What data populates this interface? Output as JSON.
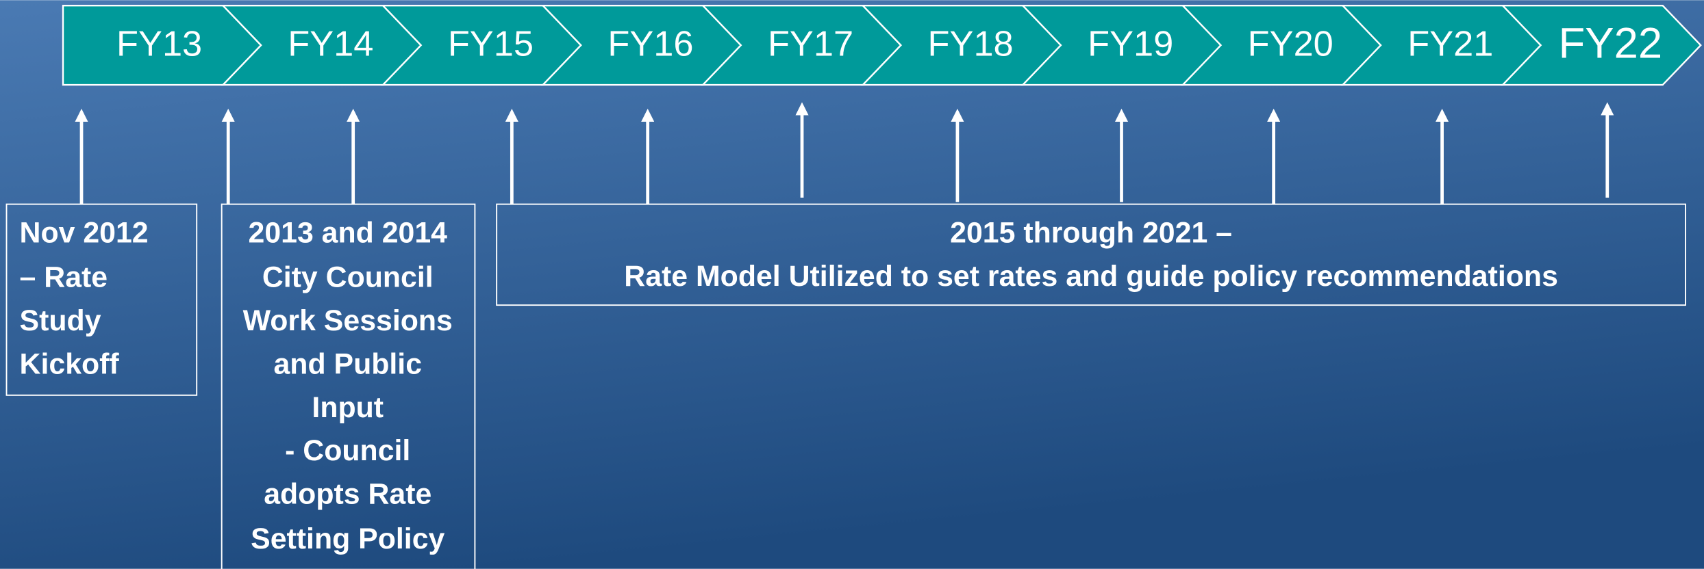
{
  "timeline": {
    "years": [
      "FY13",
      "FY14",
      "FY15",
      "FY16",
      "FY17",
      "FY18",
      "FY19",
      "FY20",
      "FY21",
      "FY22"
    ],
    "boxes": [
      {
        "lines": [
          "Nov 2012",
          "– Rate",
          "Study",
          "Kickoff"
        ]
      },
      {
        "lines": [
          "2013 and 2014",
          "City Council",
          "Work Sessions",
          "and Public",
          "Input",
          "- Council",
          "adopts Rate",
          "Setting Policy"
        ]
      },
      {
        "lines": [
          "2015 through 2021 –",
          "Rate Model Utilized to set rates and guide policy recommendations"
        ]
      }
    ]
  }
}
